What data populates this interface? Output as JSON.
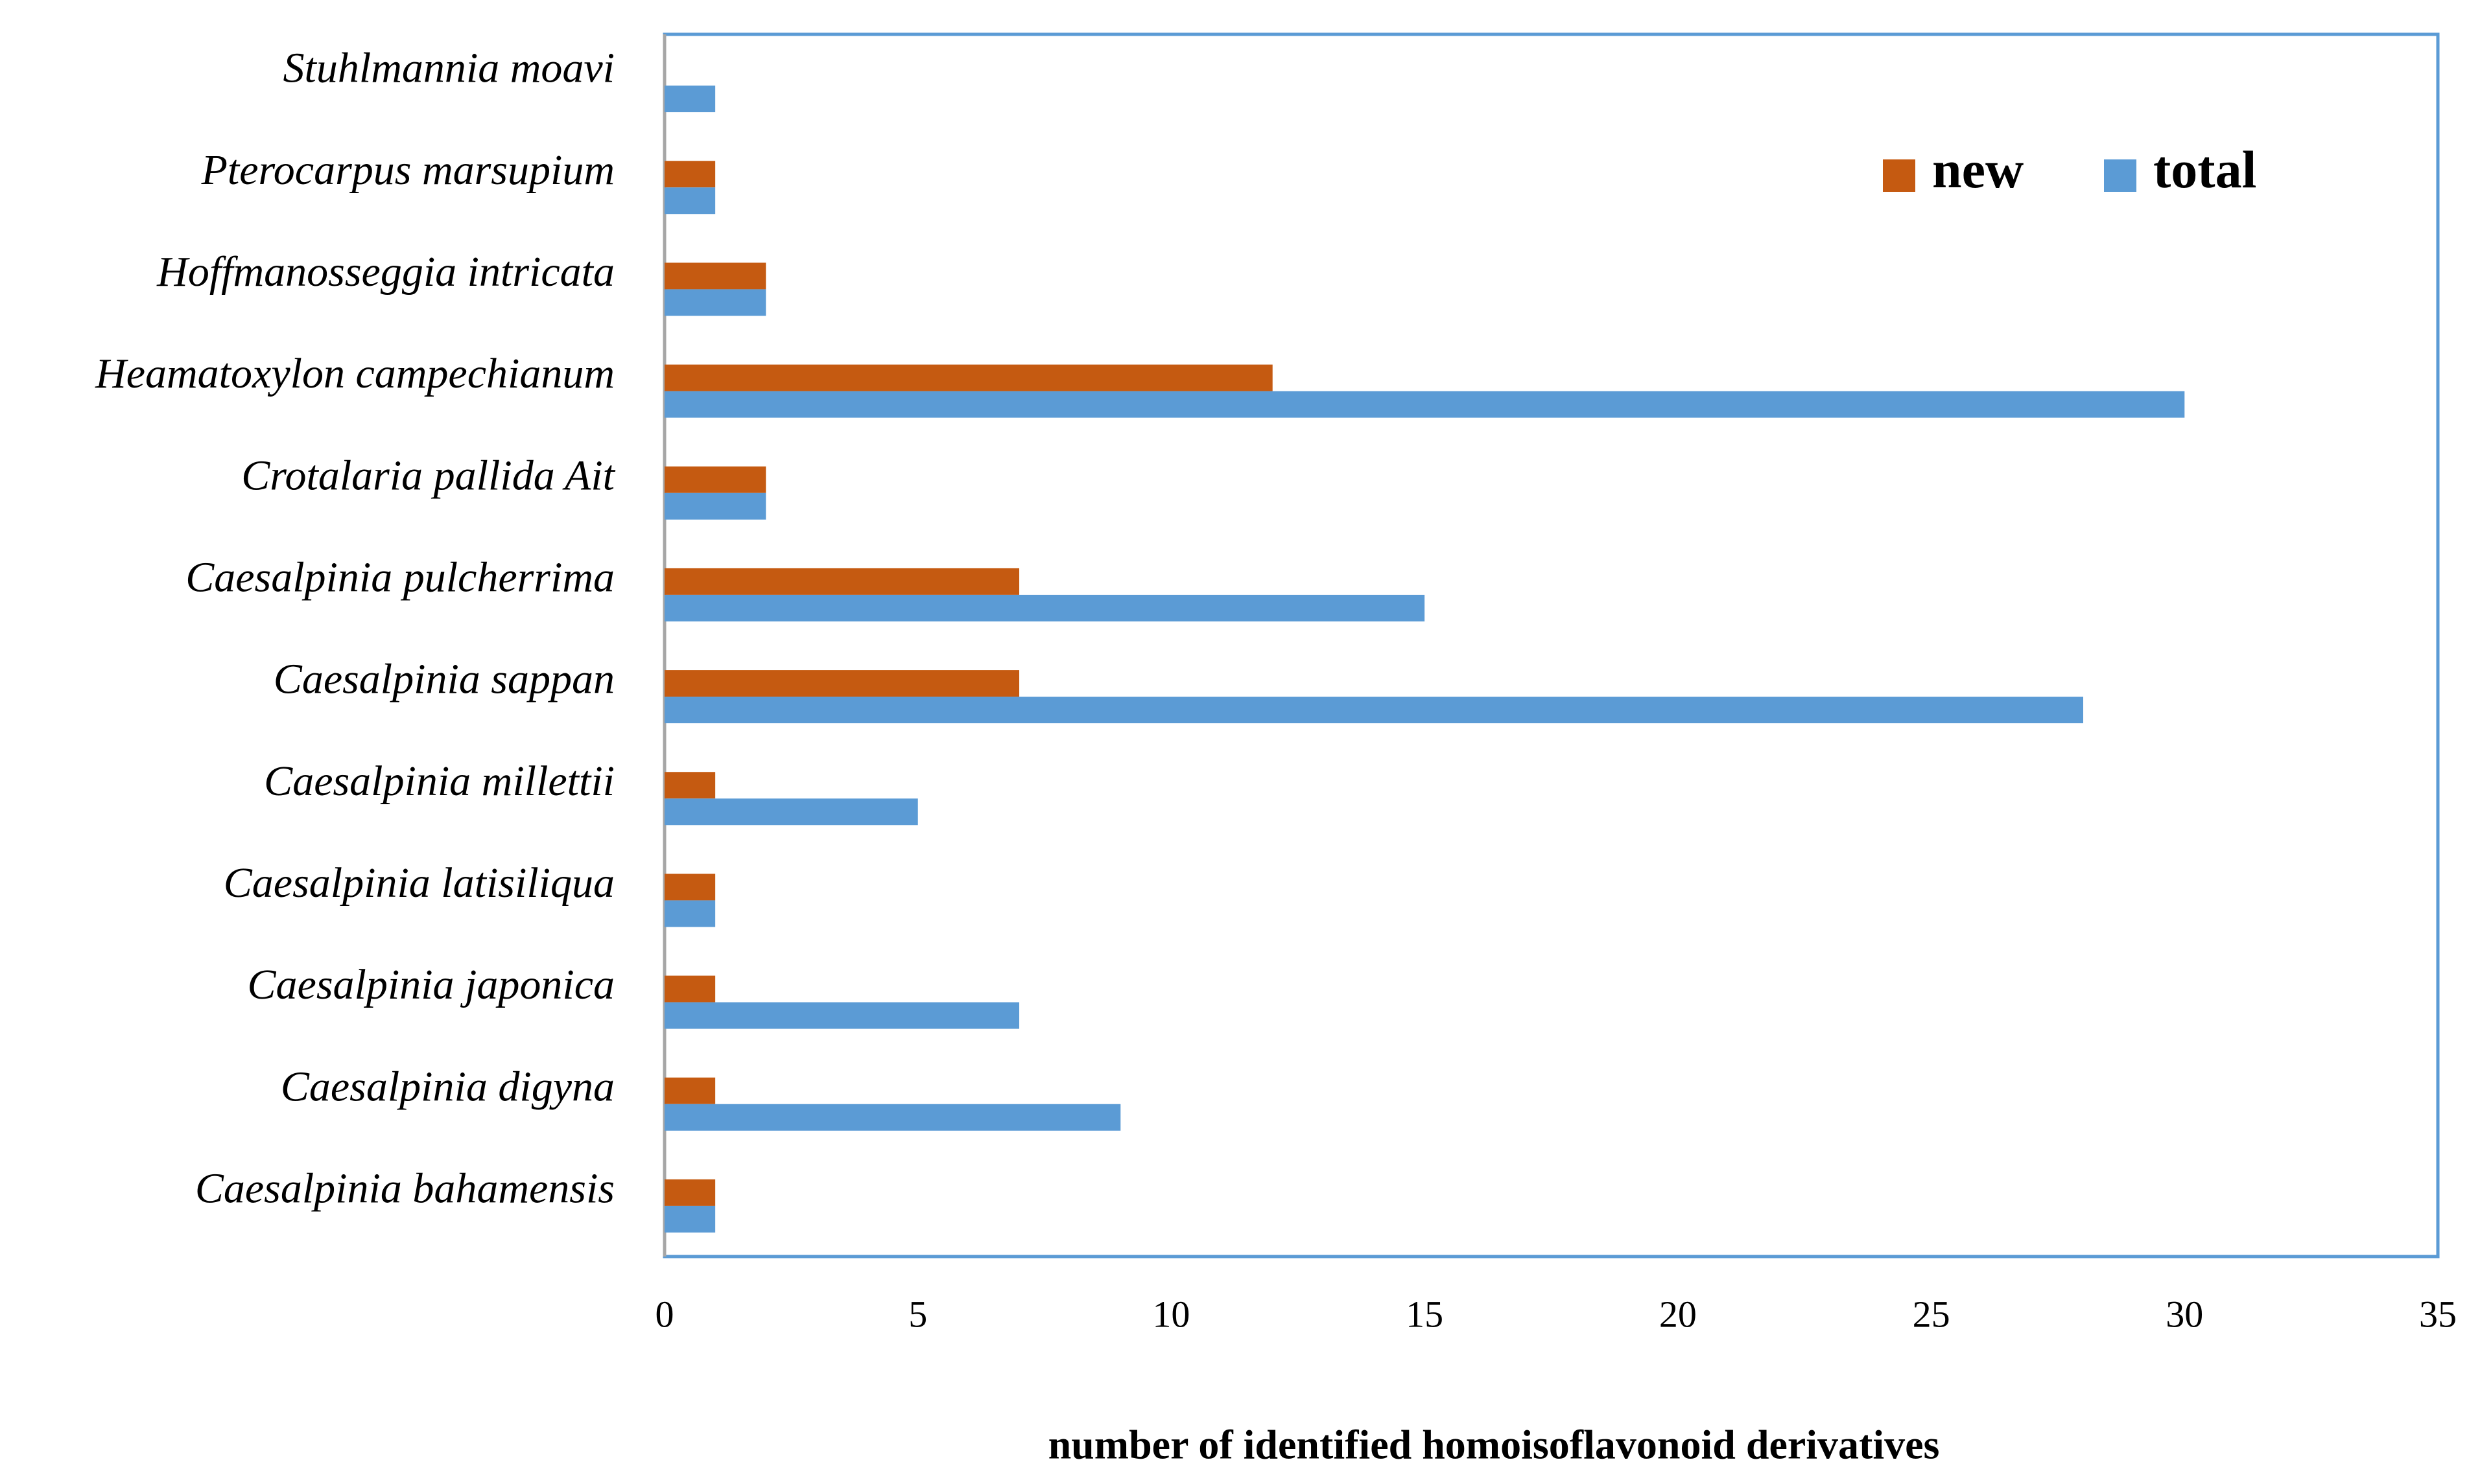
{
  "chart_data": {
    "type": "hbar",
    "x_label": "number of identified  homoisoflavonoid  derivatives",
    "categories": [
      "Caesalpinia bahamensis",
      "Caesalpinia digyna",
      "Caesalpinia japonica",
      "Caesalpinia latisiliqua",
      "Caesalpinia millettii",
      "Caesalpinia sappan",
      "Caesalpinia pulcherrima",
      "Crotalaria pallida Ait",
      "Heamatoxylon campechianum",
      "Hoffmanosseggia intricata",
      "Pterocarpus marsupium",
      "Stuhlmannia moavi"
    ],
    "series": [
      {
        "name": "new",
        "color": "#c55a11",
        "values": [
          1,
          1,
          1,
          1,
          1,
          7,
          7,
          2,
          12,
          2,
          1,
          0
        ]
      },
      {
        "name": "total",
        "color": "#5b9bd5",
        "values": [
          1,
          9,
          7,
          1,
          5,
          28,
          15,
          2,
          30,
          2,
          1,
          1
        ]
      }
    ],
    "xlim": [
      0,
      35
    ],
    "xticks": [
      0,
      5,
      10,
      15,
      20,
      25,
      30,
      35
    ],
    "legend": "upper right",
    "grid": false
  }
}
